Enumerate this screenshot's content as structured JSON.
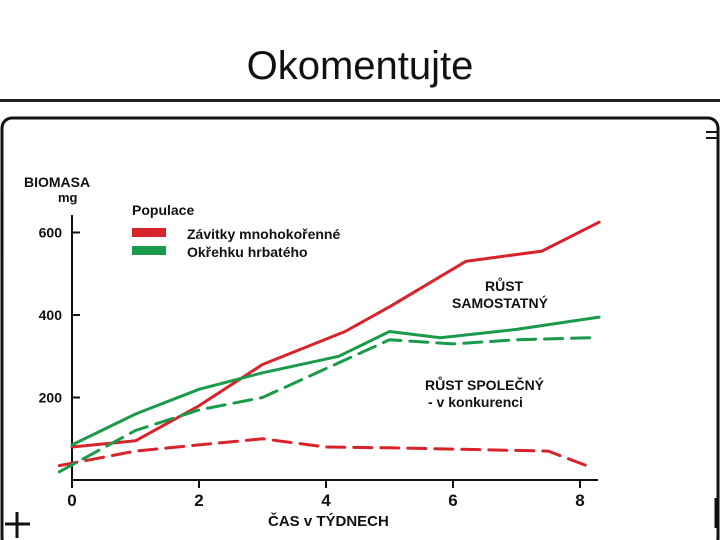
{
  "slide": {
    "title": "Okomentujte"
  },
  "chart_data": {
    "type": "line",
    "ylabel_line1": "BIOMASA",
    "ylabel_line2": "mg",
    "xlabel": "ČAS v TÝDNECH",
    "legend_title": "Populace",
    "x_ticks": [
      0,
      2,
      4,
      6,
      8
    ],
    "y_ticks": [
      200,
      400,
      600
    ],
    "xlim": [
      0,
      8.3
    ],
    "ylim": [
      0,
      650
    ],
    "legend_placement": "top-left",
    "colors": {
      "red": "#d8232a",
      "green": "#1a9a4b"
    },
    "legend": [
      {
        "label": "Závitky mnohokořenné",
        "color": "#d8232a"
      },
      {
        "label": "Okřehku hrbatého",
        "color": "#1a9a4b"
      }
    ],
    "annotations": {
      "alone_line1": "RŮST",
      "alone_line2": "SAMOSTATNÝ",
      "together_line1": "RŮST SPOLEČNÝ",
      "together_line2": "-  v konkurenci"
    },
    "series": [
      {
        "color": "#d8232a",
        "dashed": false,
        "x": [
          0,
          1,
          2,
          3,
          4.3,
          5,
          6.2,
          7.4,
          8.3
        ],
        "y": [
          80,
          95,
          180,
          280,
          360,
          420,
          530,
          555,
          625
        ]
      },
      {
        "color": "#1a9a4b",
        "dashed": false,
        "x": [
          0,
          1,
          2,
          3,
          4.2,
          5,
          5.8,
          7,
          8.3
        ],
        "y": [
          85,
          160,
          220,
          260,
          300,
          360,
          345,
          365,
          395
        ]
      },
      {
        "color": "#d8232a",
        "dashed": true,
        "x": [
          -0.2,
          1,
          2,
          3,
          4,
          5,
          6,
          7.5,
          8.1
        ],
        "y": [
          35,
          70,
          85,
          100,
          80,
          78,
          75,
          70,
          35
        ]
      },
      {
        "color": "#1a9a4b",
        "dashed": true,
        "x": [
          -0.2,
          1,
          2,
          3,
          4,
          5,
          6,
          7,
          8.2
        ],
        "y": [
          20,
          120,
          170,
          200,
          270,
          340,
          330,
          340,
          345
        ]
      }
    ]
  }
}
